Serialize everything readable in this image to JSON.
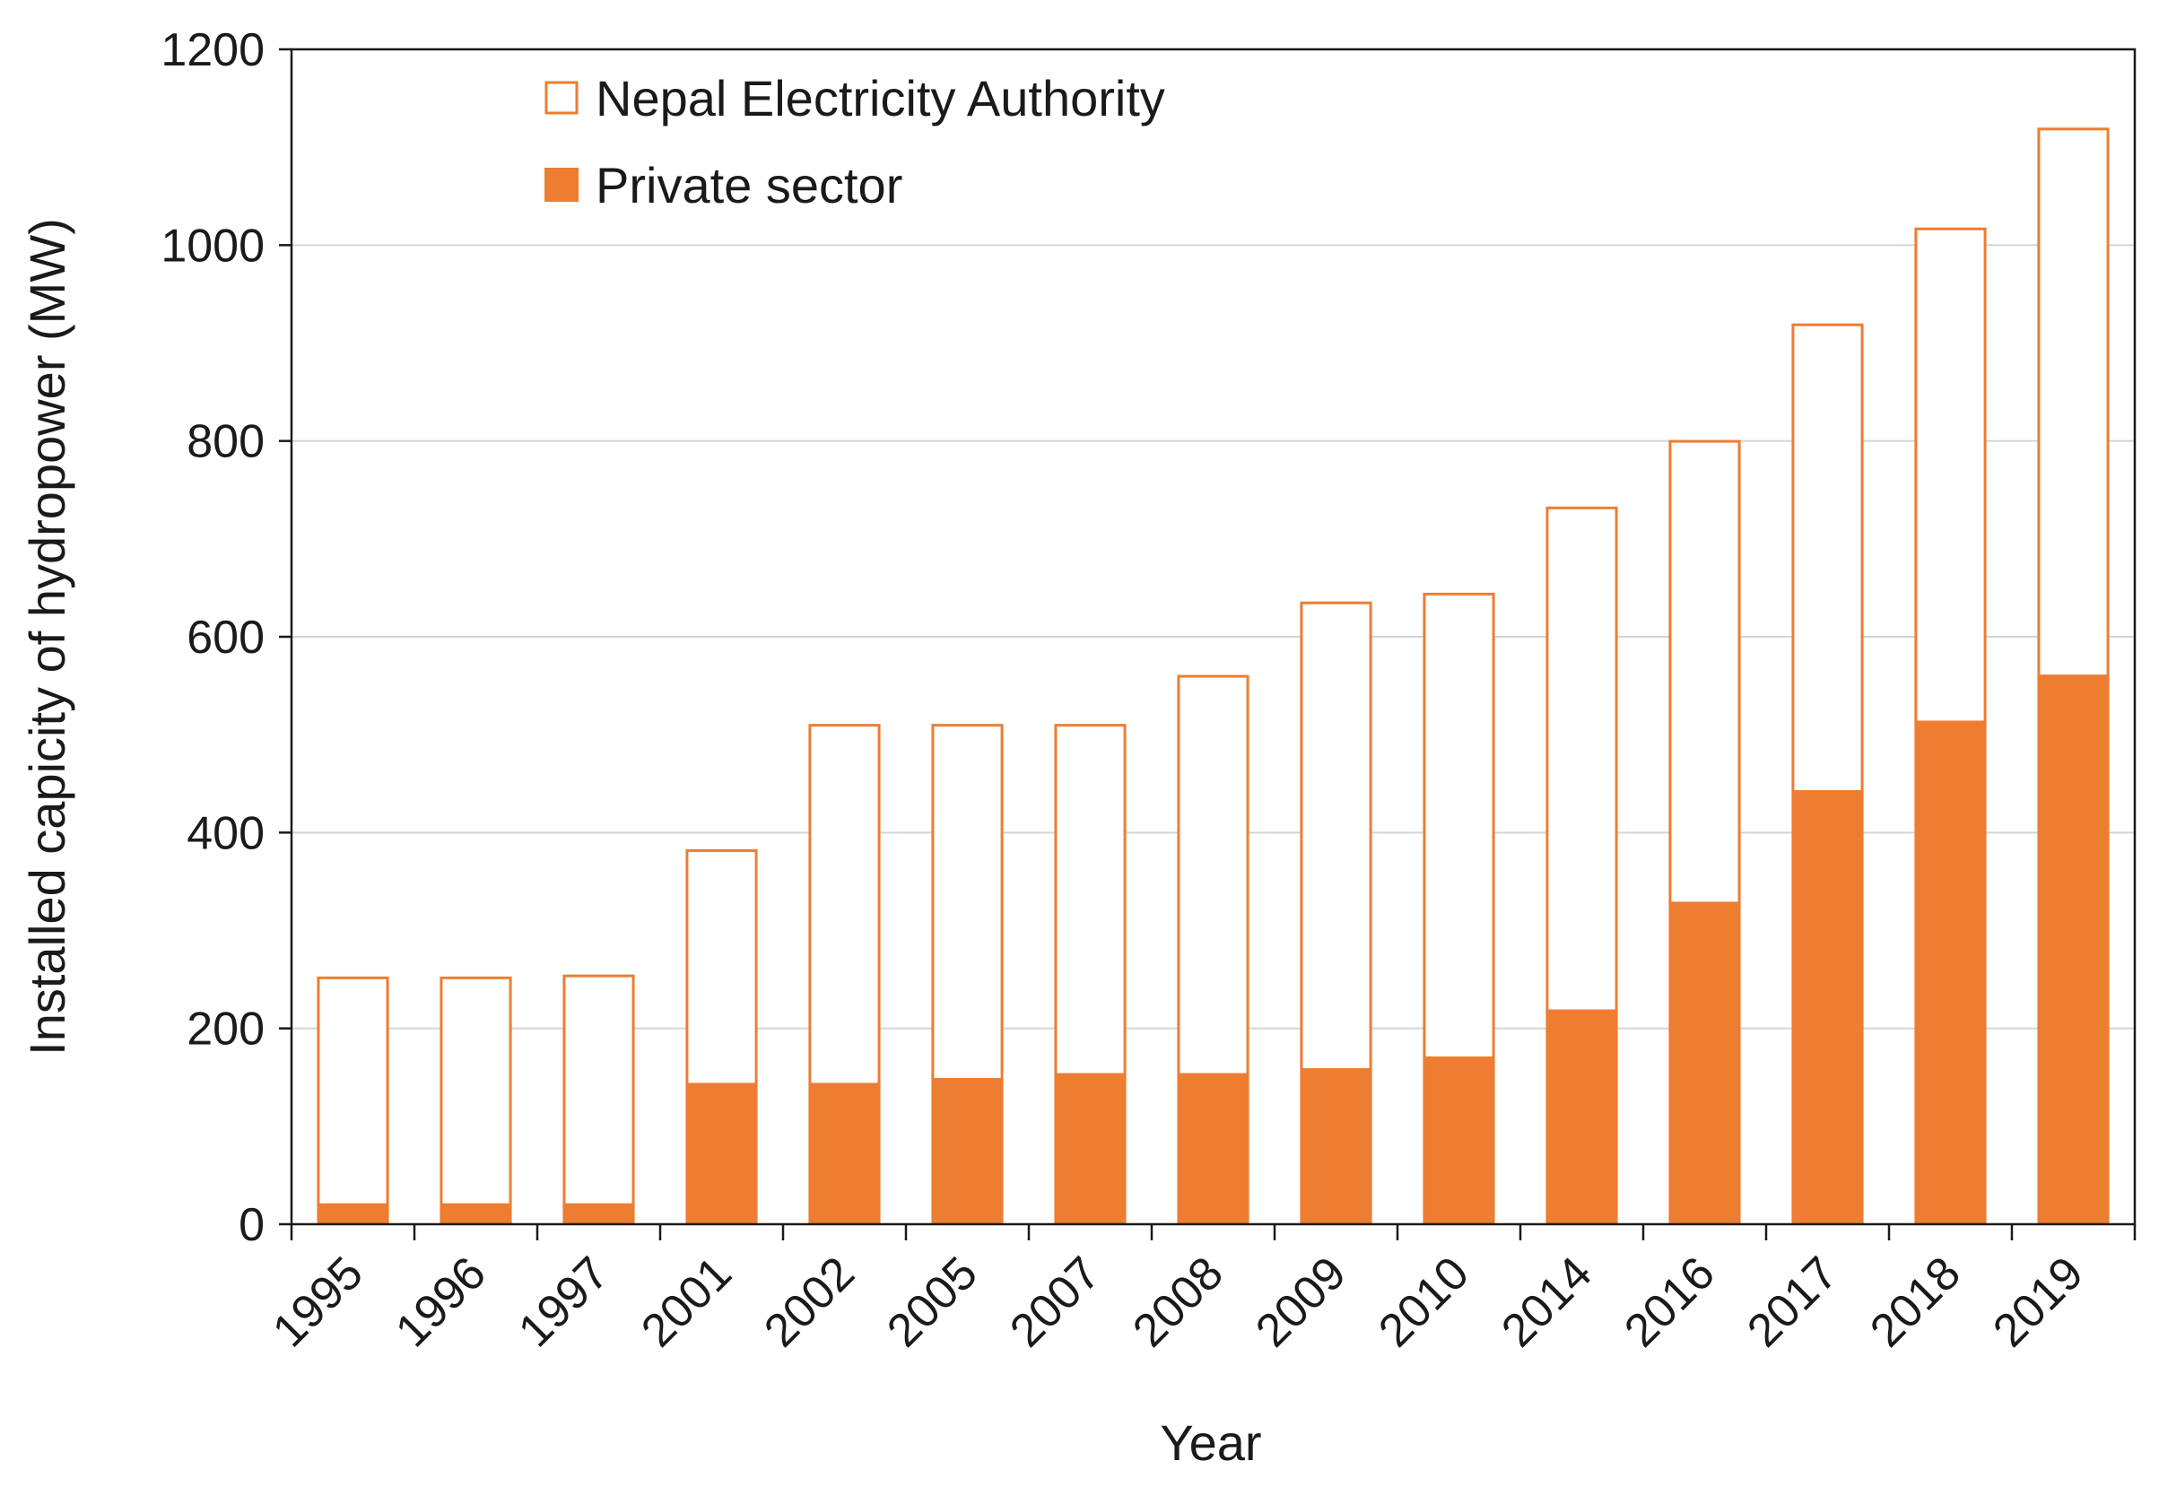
{
  "chart_data": {
    "type": "bar",
    "stacked": true,
    "title": "",
    "xlabel": "Year",
    "ylabel": "Installed capicity of hydropower (MW)",
    "ylim": [
      0,
      1200
    ],
    "yticks": [
      0,
      200,
      400,
      600,
      800,
      1000,
      1200
    ],
    "grid": "horizontal",
    "legend_position": "top-left",
    "categories": [
      "1995",
      "1996",
      "1997",
      "2001",
      "2002",
      "2005",
      "2007",
      "2008",
      "2009",
      "2010",
      "2014",
      "2016",
      "2017",
      "2018",
      "2019"
    ],
    "series": [
      {
        "name": "Private sector",
        "style": "filled",
        "color": "#ED7D31",
        "values": [
          20,
          20,
          20,
          143,
          143,
          148,
          153,
          153,
          158,
          170,
          218,
          328,
          442,
          513,
          560
        ]
      },
      {
        "name": "Nepal Electricity Authority",
        "style": "outline",
        "color": "#ED7D31",
        "values": [
          233,
          233,
          235,
          240,
          368,
          363,
          358,
          408,
          478,
          475,
          515,
          473,
          478,
          505,
          560
        ]
      }
    ],
    "legend_order": [
      "Nepal Electricity Authority",
      "Private sector"
    ]
  }
}
